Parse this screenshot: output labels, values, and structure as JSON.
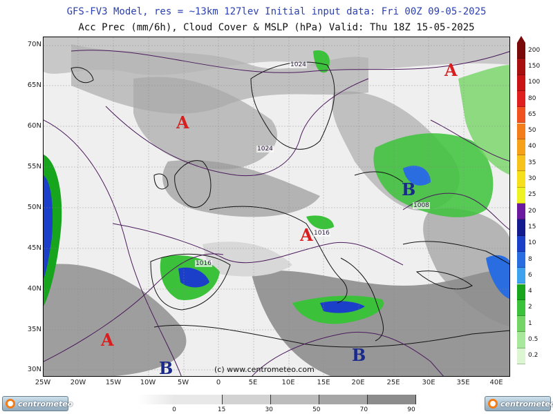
{
  "header": {
    "line1": "GFS-FV3 Model, res = ~13km 127lev   Initial input data: Fri 00Z 09-05-2025",
    "line2": "Acc Prec (mm/6h), Cloud Cover & MSLP (hPa)  Valid: Thu 18Z 15-05-2025"
  },
  "axes": {
    "lat_labels": [
      "70N",
      "65N",
      "60N",
      "55N",
      "50N",
      "45N",
      "40N",
      "35N",
      "30N"
    ],
    "lon_labels": [
      "25W",
      "20W",
      "15W",
      "10W",
      "5W",
      "0",
      "5E",
      "10E",
      "15E",
      "20E",
      "25E",
      "30E",
      "35E",
      "40E"
    ]
  },
  "pressure_centers": [
    {
      "type": "high",
      "letter": "A",
      "region": "North Atlantic west of Scotland"
    },
    {
      "type": "high",
      "letter": "A",
      "region": "northwest Russia"
    },
    {
      "type": "high",
      "letter": "A",
      "region": "near Canary Islands"
    },
    {
      "type": "high",
      "letter": "A",
      "region": "northern Italy"
    },
    {
      "type": "low",
      "letter": "B",
      "region": "Ukraine"
    },
    {
      "type": "low",
      "letter": "B",
      "region": "Morocco"
    },
    {
      "type": "low",
      "letter": "B",
      "region": "Libya"
    }
  ],
  "isobar_labels": [
    "1024",
    "1024",
    "1008",
    "1016",
    "1016"
  ],
  "precip_scale": {
    "values": [
      "200",
      "150",
      "100",
      "80",
      "65",
      "50",
      "40",
      "35",
      "30",
      "25",
      "20",
      "15",
      "10",
      "8",
      "6",
      "4",
      "2",
      "1",
      "0.5",
      "0.2"
    ],
    "colors": [
      "#7a0a0a",
      "#a80f0f",
      "#c81414",
      "#e01f1f",
      "#f0531f",
      "#f27d1a",
      "#f5a21a",
      "#f7c21c",
      "#f6e01e",
      "#eef225",
      "#6a1a9e",
      "#141b8e",
      "#1b3fc8",
      "#2a6de0",
      "#3da3ef",
      "#17a51e",
      "#3cc23a",
      "#74d565",
      "#a8e89a",
      "#dcf6d2"
    ]
  },
  "cloud_scale": {
    "values": [
      "0",
      "15",
      "30",
      "50",
      "70",
      "90"
    ],
    "colors": [
      "#e8e8e8",
      "#d2d2d2",
      "#bcbcbc",
      "#a6a6a6",
      "#8c8c8c",
      "#727272"
    ]
  },
  "credit": "(c) www.centrometeo.com",
  "logo_text": "centrometeo"
}
